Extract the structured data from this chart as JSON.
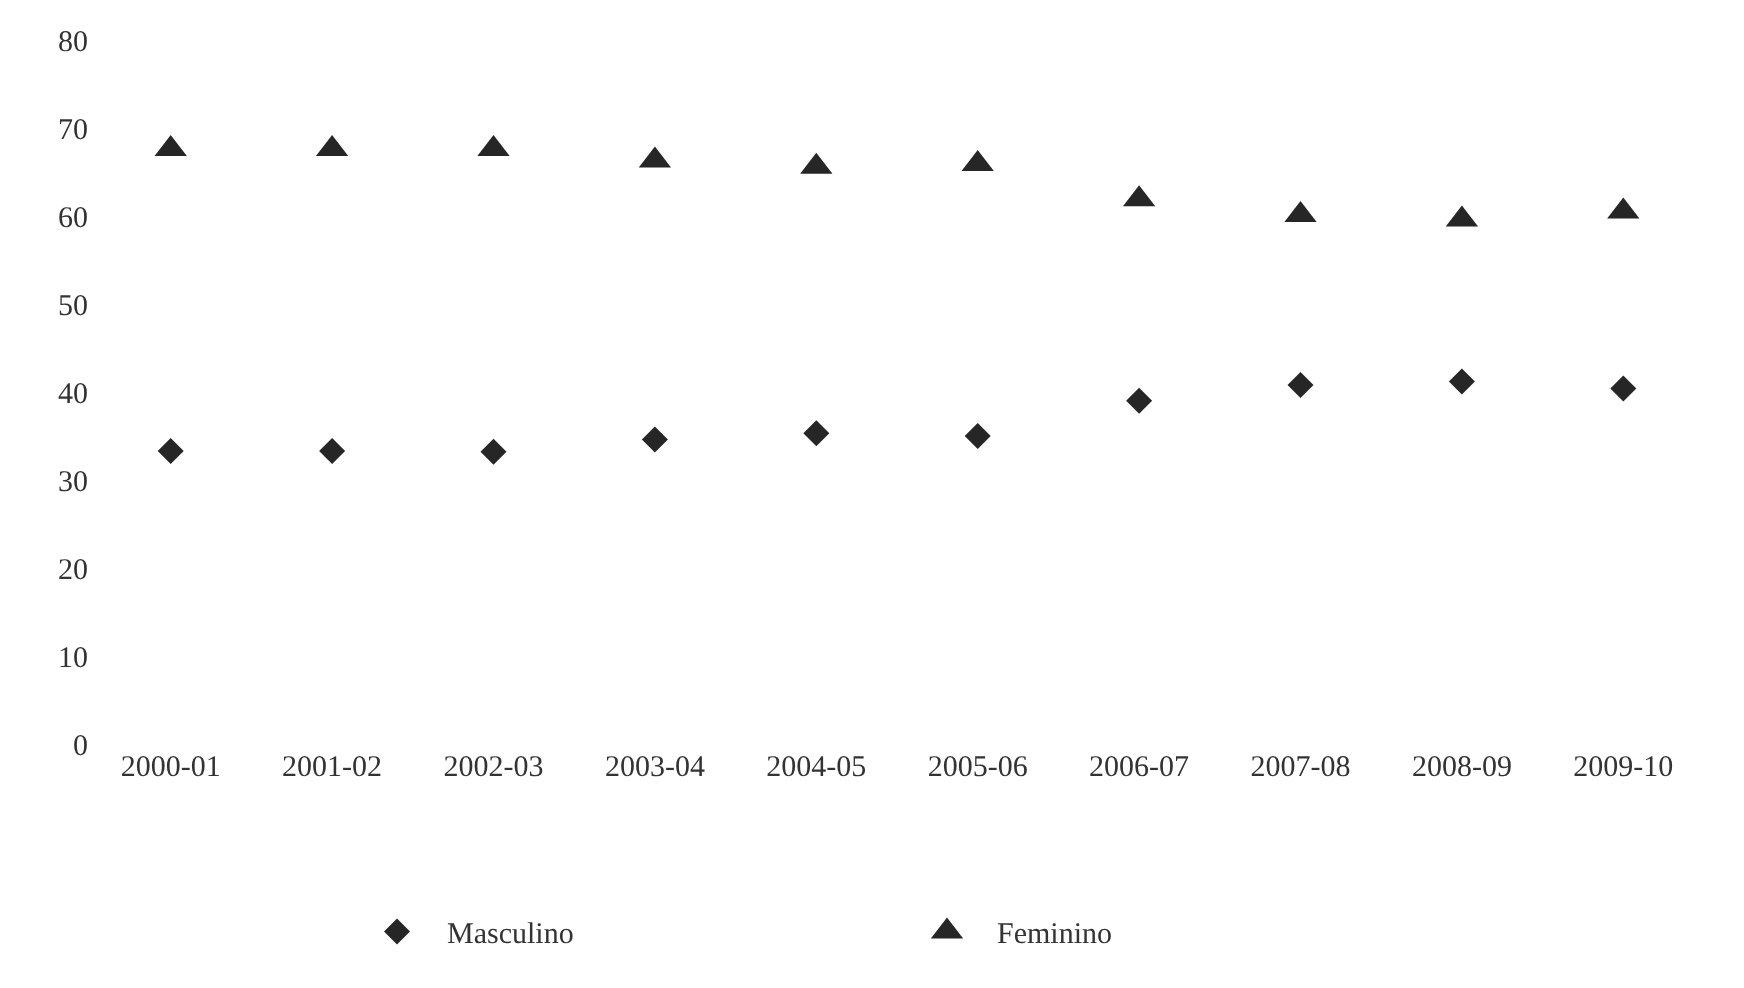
{
  "chart_data": {
    "type": "scatter",
    "categories": [
      "2000-01",
      "2001-02",
      "2002-03",
      "2003-04",
      "2004-05",
      "2005-06",
      "2006-07",
      "2007-08",
      "2008-09",
      "2009-10"
    ],
    "series": [
      {
        "name": "Masculino",
        "color": "#262626",
        "marker": "diamond",
        "values": [
          33.3,
          33.3,
          33.2,
          34.6,
          35.3,
          35.0,
          39.0,
          40.8,
          41.2,
          40.4
        ]
      },
      {
        "name": "Feminino",
        "color": "#262626",
        "marker": "triangle",
        "values": [
          67.6,
          67.6,
          67.6,
          66.3,
          65.6,
          65.9,
          61.9,
          60.1,
          59.6,
          60.5
        ]
      }
    ],
    "ylim": [
      0,
      80
    ],
    "yticks": [
      0,
      10,
      20,
      30,
      40,
      50,
      60,
      70,
      80
    ],
    "legend": "bottom"
  }
}
